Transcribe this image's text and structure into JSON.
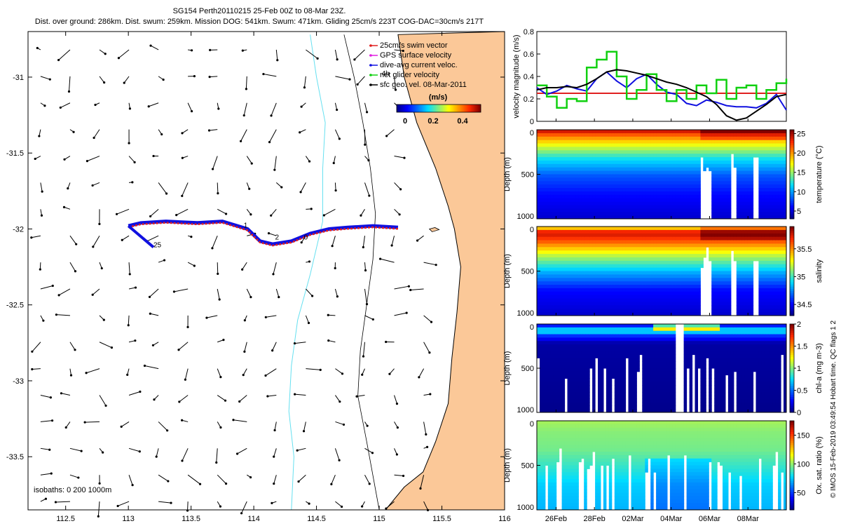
{
  "header": {
    "title": "SG154 Perth20110215 25-Feb 00Z to 08-Mar 23Z.",
    "subtitle": "Dist. over ground: 286km. Dist. swum: 259km. Mission DOG: 541km. Swum: 471km. Gliding 25cm/s 223T COG-DAC=30cm/s 217T"
  },
  "side_note": "© IMOS 15-Feb-2019 03:49:54 Hobart time. QC flags 1 2",
  "colors": {
    "land": "#FBC898",
    "coast": "#000000",
    "isobath": "#66E0F0",
    "swim": "#E02020",
    "gps": "#E020E0",
    "dac": "#1010E0",
    "net": "#10D010",
    "sfc": "#000000"
  },
  "chart_data": [
    {
      "type": "map",
      "title": "",
      "xlabel": "",
      "ylabel": "",
      "xlim": [
        112.2,
        116.0
      ],
      "ylim": [
        -33.85,
        -30.7
      ],
      "xticks": [
        112.5,
        113,
        113.5,
        114,
        114.5,
        115,
        115.5,
        116
      ],
      "xtick_labels": [
        "112.5",
        "113",
        "113.5",
        "114",
        "114.5",
        "115",
        "115.5",
        "116"
      ],
      "yticks": [
        -31,
        -31.5,
        -32,
        -32.5,
        -33,
        -33.5
      ],
      "ytick_labels": [
        "-31",
        "-31.5",
        "-32",
        "-32.5",
        "-33",
        "-33.5"
      ],
      "legend": {
        "position": "top-right",
        "entries": [
          {
            "label": "25cm/s swim vector",
            "key": "swim"
          },
          {
            "label": "GPS surface velocity",
            "key": "gps"
          },
          {
            "label": "dive-avg current veloc.",
            "key": "dac"
          },
          {
            "label": "net glider velocity",
            "key": "net"
          },
          {
            "label": "sfc geo. vel. 08-Mar-2011",
            "key": "sfc"
          }
        ],
        "colorbar_title": "(m/s)",
        "colorbar_ticks": [
          "0",
          "0.2",
          "0.4"
        ]
      },
      "glider_track": {
        "lon": [
          113.0,
          113.1,
          113.3,
          113.55,
          113.75,
          113.95,
          114.05,
          114.15,
          114.3,
          114.45,
          114.6,
          114.75,
          114.95,
          115.15
        ],
        "lat": [
          -31.98,
          -31.96,
          -31.95,
          -31.96,
          -31.95,
          -32.0,
          -32.08,
          -32.1,
          -32.08,
          -32.03,
          -32.0,
          -31.99,
          -31.98,
          -31.99
        ]
      },
      "track_labels": [
        {
          "text": "25",
          "lon": 113.2,
          "lat": -32.12
        },
        {
          "text": "1",
          "lon": 113.92,
          "lat": -31.99
        },
        {
          "text": "2",
          "lon": 114.17,
          "lat": -32.07
        },
        {
          "text": "0",
          "lon": 114.4,
          "lat": -32.07
        },
        {
          "text": "4h",
          "lon": 115.02,
          "lat": -30.99
        }
      ],
      "isobath_label": "isobaths: 0   200   1000m",
      "current_field": {
        "lon_start": 112.3,
        "lon_step": 0.235,
        "lon_count": 16,
        "lat_start": -30.82,
        "lat_step": -0.175,
        "lat_count": 18
      }
    },
    {
      "type": "line",
      "ylabel": "velocity magnitude (m/s)",
      "ylim": [
        0,
        0.8
      ],
      "yticks": [
        "0",
        "0.2",
        "0.4",
        "0.6",
        "0.8"
      ],
      "days": [
        0,
        0.5,
        1,
        1.5,
        2,
        2.5,
        3,
        3.5,
        4,
        4.5,
        5,
        5.5,
        6,
        6.5,
        7,
        7.5,
        8,
        8.5,
        9,
        9.5,
        10,
        10.5,
        11,
        11.5,
        12,
        12.5
      ],
      "series": [
        {
          "name": "25cm/s swim vector",
          "key": "swim",
          "values": [
            0.25,
            0.25,
            0.25,
            0.25,
            0.25,
            0.25,
            0.25,
            0.25,
            0.25,
            0.25,
            0.25,
            0.25,
            0.25,
            0.25,
            0.25,
            0.25,
            0.25,
            0.25,
            0.25,
            0.25,
            0.25,
            0.25,
            0.25,
            0.25,
            0.25,
            0.25
          ]
        },
        {
          "name": "dive-avg current veloc.",
          "key": "dac",
          "values": [
            0.3,
            0.24,
            0.27,
            0.32,
            0.29,
            0.27,
            0.38,
            0.44,
            0.36,
            0.3,
            0.38,
            0.42,
            0.33,
            0.26,
            0.24,
            0.16,
            0.14,
            0.19,
            0.17,
            0.14,
            0.13,
            0.13,
            0.12,
            0.16,
            0.24,
            0.1
          ]
        },
        {
          "name": "net glider velocity",
          "key": "net",
          "values": [
            0.32,
            0.22,
            0.12,
            0.2,
            0.18,
            0.48,
            0.55,
            0.62,
            0.4,
            0.2,
            0.28,
            0.42,
            0.28,
            0.18,
            0.28,
            0.2,
            0.32,
            0.25,
            0.37,
            0.2,
            0.3,
            0.32,
            0.2,
            0.28,
            0.34,
            0.38
          ]
        },
        {
          "name": "sfc geo. vel. 08-Mar-2011",
          "key": "sfc",
          "values": [
            0.28,
            0.3,
            0.3,
            0.31,
            0.3,
            0.33,
            0.38,
            0.44,
            0.46,
            0.45,
            0.43,
            0.41,
            0.38,
            0.35,
            0.33,
            0.3,
            0.26,
            0.22,
            0.15,
            0.05,
            0.01,
            0.03,
            0.09,
            0.15,
            0.22,
            0.24
          ]
        }
      ]
    },
    {
      "type": "heatmap",
      "ylabel": "Depth (m)",
      "clabel": "temperature (°C)",
      "ylim": [
        1000,
        0
      ],
      "yticks": [
        "0",
        "500",
        "1000"
      ],
      "cticks": [
        "25",
        "20",
        "15",
        "10",
        "5"
      ],
      "clim": [
        3,
        26
      ],
      "profile": {
        "depth": [
          0,
          50,
          150,
          300,
          500,
          700,
          1000
        ],
        "value": [
          24,
          21,
          17,
          12,
          8,
          6,
          4.5
        ]
      }
    },
    {
      "type": "heatmap",
      "ylabel": "Depth (m)",
      "clabel": "salinity",
      "ylim": [
        1000,
        0
      ],
      "yticks": [
        "0",
        "500",
        "1000"
      ],
      "cticks": [
        "35.5",
        "35",
        "34.5"
      ],
      "clim": [
        34.3,
        35.9
      ],
      "profile": {
        "depth": [
          0,
          50,
          150,
          300,
          500,
          700,
          1000
        ],
        "value": [
          35.4,
          35.8,
          35.6,
          35.2,
          34.8,
          34.5,
          34.4
        ]
      }
    },
    {
      "type": "heatmap",
      "ylabel": "Depth (m)",
      "clabel": "chl-a (mg m-3)",
      "ylim": [
        1000,
        0
      ],
      "yticks": [
        "0",
        "500",
        "1000"
      ],
      "cticks": [
        "2",
        "1.5",
        "1",
        "0.5",
        "0"
      ],
      "clim": [
        0,
        2
      ],
      "profile": {
        "depth": [
          0,
          20,
          60,
          100,
          200,
          1000
        ],
        "value": [
          0.3,
          0.5,
          0.9,
          0.4,
          0.05,
          0.0
        ]
      }
    },
    {
      "type": "heatmap",
      "ylabel": "Depth (m)",
      "clabel": "Ox. sat. ratio (%)",
      "ylim": [
        1000,
        0
      ],
      "yticks": [
        "0",
        "500",
        "1000"
      ],
      "cticks": [
        "150",
        "100",
        "50"
      ],
      "clim": [
        20,
        175
      ],
      "profile": {
        "depth": [
          0,
          100,
          300,
          500,
          700,
          1000
        ],
        "value": [
          102,
          98,
          95,
          85,
          75,
          70
        ]
      }
    }
  ],
  "time_axis": {
    "range_days": [
      0,
      13
    ],
    "ticks": [
      {
        "day": 1,
        "label": "26Feb"
      },
      {
        "day": 3,
        "label": "28Feb"
      },
      {
        "day": 5,
        "label": "02Mar"
      },
      {
        "day": 7,
        "label": "04Mar"
      },
      {
        "day": 9,
        "label": "06Mar"
      },
      {
        "day": 11,
        "label": "08Mar"
      }
    ]
  }
}
